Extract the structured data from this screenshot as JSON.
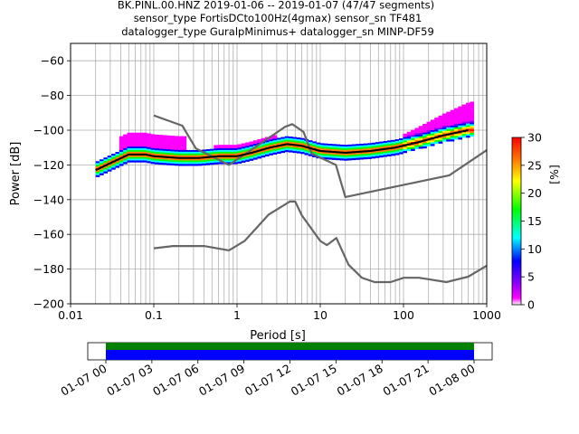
{
  "chart_data": {
    "type": "heatmap",
    "title": [
      "BK.PINL.00.HNZ   2019-01-06 -- 2019-01-07  (47/47 segments)",
      "sensor_type FortisDCto100Hz(4gmax) sensor_sn TF481",
      "datalogger_type GuralpMinimus+ datalogger_sn MINP-DF59"
    ],
    "xlabel": "Period [s]",
    "ylabel": "Power [dB]",
    "xscale": "log",
    "xlim": [
      0.01,
      1000
    ],
    "ylim": [
      -200,
      -50
    ],
    "grid": true,
    "x_ticks": [
      "0.01",
      "0.1",
      "1",
      "10",
      "100",
      "1000"
    ],
    "y_ticks": [
      "−60",
      "−80",
      "−100",
      "−120",
      "−140",
      "−160",
      "−180",
      "−200"
    ],
    "colorbar": {
      "label": "[%]",
      "range": [
        0,
        30
      ],
      "ticks": [
        "0",
        "5",
        "10",
        "15",
        "20",
        "25",
        "30"
      ],
      "colors": [
        "#ffffff",
        "#ff00ff",
        "#8000ff",
        "#0000ff",
        "#00ffff",
        "#00ff00",
        "#ffff00",
        "#ff8000",
        "#ff0000"
      ]
    },
    "series": [
      {
        "role": "new-low-noise-model",
        "color": "#666666",
        "x": [
          0.1,
          0.17,
          0.4,
          0.8,
          1.24,
          2.4,
          4.3,
          5.0,
          6.0,
          10,
          12,
          15.6,
          21.9,
          31.6,
          45,
          70,
          101,
          154,
          328,
          600,
          1000
        ],
        "y": [
          -168,
          -166.7,
          -166.7,
          -169.2,
          -163.7,
          -148.6,
          -141.1,
          -141.1,
          -149.0,
          -163.8,
          -166.2,
          -162.1,
          -177.5,
          -185.0,
          -187.5,
          -187.5,
          -185.0,
          -185.0,
          -187.5,
          -184.4,
          -178.0
        ]
      },
      {
        "role": "new-high-noise-model",
        "color": "#666666",
        "x": [
          0.1,
          0.22,
          0.32,
          0.8,
          3.8,
          4.6,
          6.3,
          7.9,
          15.4,
          20,
          354.8,
          1000
        ],
        "y": [
          -91.5,
          -97.4,
          -110.5,
          -120.0,
          -98.0,
          -96.5,
          -101.0,
          -113.5,
          -120.0,
          -138.5,
          -126.0,
          -111.5
        ]
      },
      {
        "role": "mode",
        "color": "#000000",
        "x": [
          0.02,
          0.03,
          0.05,
          0.08,
          0.1,
          0.2,
          0.35,
          0.6,
          1.0,
          1.5,
          2.5,
          4.0,
          6.0,
          10,
          20,
          40,
          80,
          150,
          300,
          600
        ],
        "y": [
          -123,
          -119,
          -114,
          -114,
          -115,
          -116,
          -116,
          -115,
          -115,
          -113,
          -110,
          -108,
          -109,
          -112,
          -113,
          -112,
          -110,
          -107,
          -103,
          -100
        ]
      }
    ],
    "spectrogram": {
      "x_ticks": [
        "01-07 00",
        "01-07 03",
        "01-07 06",
        "01-07 09",
        "01-07 12",
        "01-07 15",
        "01-07 18",
        "01-07 21",
        "01-08 00"
      ],
      "bands": [
        "#008000",
        "#0000ff"
      ]
    }
  }
}
